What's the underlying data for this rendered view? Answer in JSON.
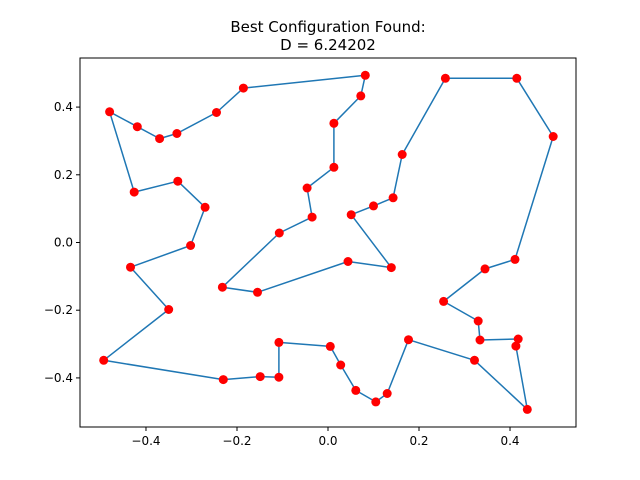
{
  "chart_data": {
    "type": "scatter",
    "title": "Best Configuration Found:",
    "subtitle": "D = 6.24202",
    "xlabel": "",
    "ylabel": "",
    "xlim": [
      -0.545,
      0.545
    ],
    "ylim": [
      -0.545,
      0.545
    ],
    "xticks": [
      -0.4,
      -0.2,
      0.0,
      0.2,
      0.4
    ],
    "xtick_labels": [
      "−0.4",
      "−0.2",
      "0.0",
      "0.2",
      "0.4"
    ],
    "yticks": [
      -0.4,
      -0.2,
      0.0,
      0.2,
      0.4
    ],
    "ytick_labels": [
      "−0.4",
      "−0.2",
      "0.0",
      "0.2",
      "0.4"
    ],
    "grid": false,
    "line_color": "#1f77b4",
    "point_color": "#ff0000",
    "tour": [
      {
        "x": 0.082,
        "y": 0.494
      },
      {
        "x": -0.186,
        "y": 0.456
      },
      {
        "x": -0.245,
        "y": 0.384
      },
      {
        "x": -0.332,
        "y": 0.322
      },
      {
        "x": -0.37,
        "y": 0.307
      },
      {
        "x": -0.419,
        "y": 0.342
      },
      {
        "x": -0.48,
        "y": 0.386
      },
      {
        "x": -0.426,
        "y": 0.149
      },
      {
        "x": -0.33,
        "y": 0.181
      },
      {
        "x": -0.27,
        "y": 0.104
      },
      {
        "x": -0.302,
        "y": -0.009
      },
      {
        "x": -0.434,
        "y": -0.073
      },
      {
        "x": -0.35,
        "y": -0.198
      },
      {
        "x": -0.493,
        "y": -0.348
      },
      {
        "x": -0.23,
        "y": -0.405
      },
      {
        "x": -0.149,
        "y": -0.396
      },
      {
        "x": -0.108,
        "y": -0.398
      },
      {
        "x": -0.108,
        "y": -0.295
      },
      {
        "x": 0.005,
        "y": -0.307
      },
      {
        "x": 0.028,
        "y": -0.362
      },
      {
        "x": 0.061,
        "y": -0.437
      },
      {
        "x": 0.105,
        "y": -0.471
      },
      {
        "x": 0.13,
        "y": -0.446
      },
      {
        "x": 0.177,
        "y": -0.287
      },
      {
        "x": 0.322,
        "y": -0.348
      },
      {
        "x": 0.438,
        "y": -0.493
      },
      {
        "x": 0.413,
        "y": -0.306
      },
      {
        "x": 0.418,
        "y": -0.285
      },
      {
        "x": 0.334,
        "y": -0.288
      },
      {
        "x": 0.33,
        "y": -0.232
      },
      {
        "x": 0.254,
        "y": -0.174
      },
      {
        "x": 0.345,
        "y": -0.078
      },
      {
        "x": 0.411,
        "y": -0.05
      },
      {
        "x": 0.495,
        "y": 0.313
      },
      {
        "x": 0.415,
        "y": 0.485
      },
      {
        "x": 0.258,
        "y": 0.485
      },
      {
        "x": 0.163,
        "y": 0.26
      },
      {
        "x": 0.143,
        "y": 0.132
      },
      {
        "x": 0.1,
        "y": 0.108
      },
      {
        "x": 0.051,
        "y": 0.082
      },
      {
        "x": 0.139,
        "y": -0.074
      },
      {
        "x": 0.044,
        "y": -0.056
      },
      {
        "x": -0.155,
        "y": -0.147
      },
      {
        "x": -0.232,
        "y": -0.132
      },
      {
        "x": -0.107,
        "y": 0.028
      },
      {
        "x": -0.035,
        "y": 0.075
      },
      {
        "x": -0.046,
        "y": 0.161
      },
      {
        "x": 0.013,
        "y": 0.222
      },
      {
        "x": 0.013,
        "y": 0.352
      },
      {
        "x": 0.072,
        "y": 0.433
      }
    ],
    "closed": true
  }
}
